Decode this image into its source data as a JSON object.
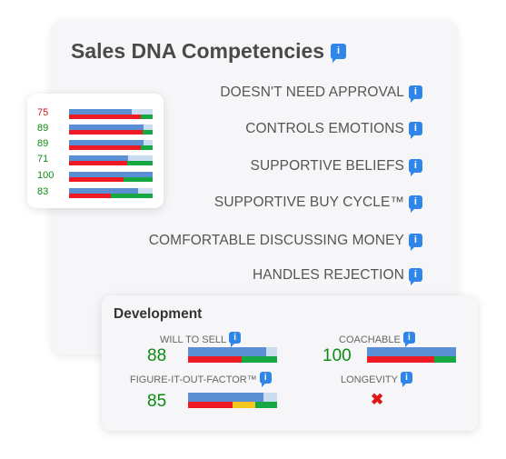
{
  "competencies": {
    "title": "Sales DNA Competencies",
    "items": [
      {
        "label": "DOESN'T NEED APPROVAL"
      },
      {
        "label": "CONTROLS EMOTIONS"
      },
      {
        "label": "SUPPORTIVE BELIEFS"
      },
      {
        "label": "SUPPORTIVE BUY CYCLE™"
      },
      {
        "label": "COMFORTABLE DISCUSSING MONEY"
      },
      {
        "label": "HANDLES REJECTION"
      }
    ],
    "info_glyph": "i"
  },
  "scores": [
    {
      "value": "75",
      "color": "#d7191c",
      "blue": 0.75,
      "red": 0.86
    },
    {
      "value": "89",
      "color": "#138a13",
      "blue": 0.89,
      "red": 0.88
    },
    {
      "value": "89",
      "color": "#138a13",
      "blue": 0.89,
      "red": 0.86
    },
    {
      "value": "71",
      "color": "#138a13",
      "blue": 0.71,
      "red": 0.7
    },
    {
      "value": "100",
      "color": "#138a13",
      "blue": 1.0,
      "red": 0.65
    },
    {
      "value": "83",
      "color": "#138a13",
      "blue": 0.83,
      "red": 0.5
    }
  ],
  "development": {
    "title": "Development",
    "items": [
      {
        "label": "WILL TO SELL",
        "value": "88",
        "level": 0.88
      },
      {
        "label": "COACHABLE",
        "value": "100",
        "level": 1.0
      },
      {
        "label": "FIGURE-IT-OUT-FACTOR™",
        "value": "85",
        "level": 0.85
      },
      {
        "label": "LONGEVITY",
        "value": "",
        "status_icon": "x-mark-icon"
      }
    ]
  },
  "colors": {
    "accent": "#2f86e8",
    "bar_blue": "#5a8fd6",
    "bar_red": "#ee1b24",
    "bar_green": "#18a843",
    "bar_yellow": "#f7c51e"
  }
}
